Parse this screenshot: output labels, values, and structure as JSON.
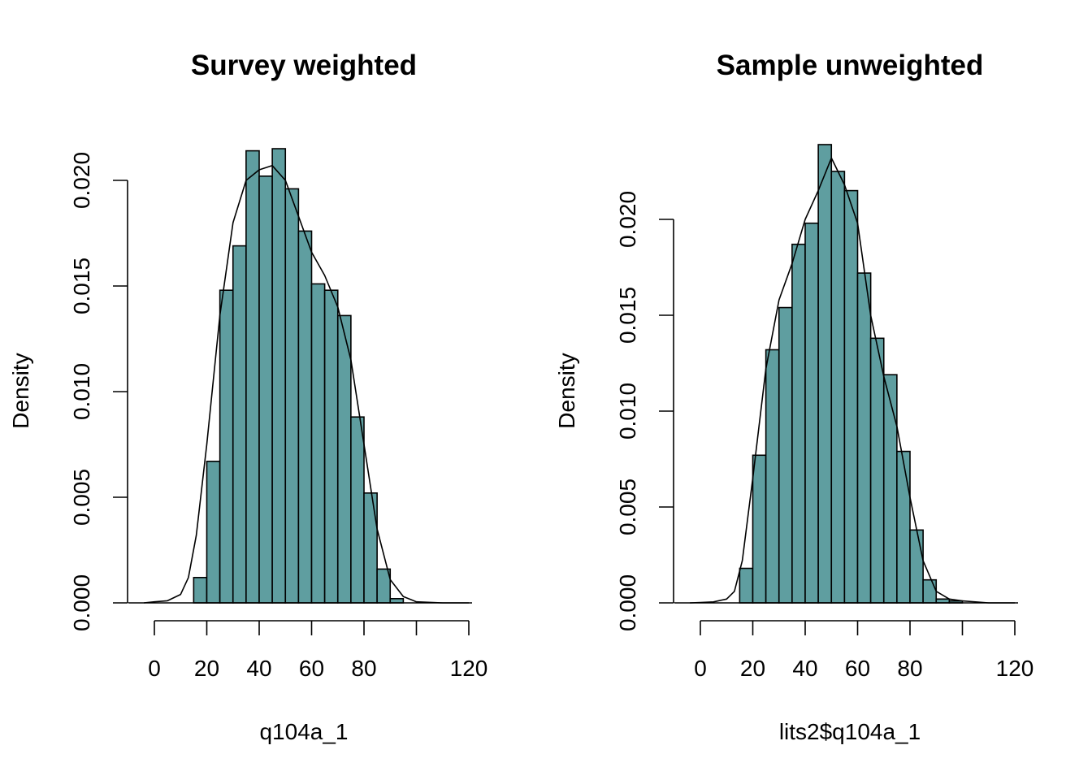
{
  "chart_data": [
    {
      "type": "bar",
      "title": "Survey weighted",
      "xlabel": "q104a_1",
      "ylabel": "Density",
      "xlim": [
        -5,
        120
      ],
      "ylim": [
        0,
        0.022
      ],
      "x_ticks": [
        0,
        20,
        40,
        60,
        80,
        100,
        120
      ],
      "x_tick_labels": [
        "0",
        "20",
        "40",
        "60",
        "80",
        "",
        "120"
      ],
      "y_ticks": [
        0,
        0.005,
        0.01,
        0.015,
        0.02
      ],
      "y_tick_labels": [
        "0.000",
        "0.005",
        "0.010",
        "0.015",
        "0.020"
      ],
      "bin_width": 5,
      "bins": [
        {
          "x0": 15,
          "density": 0.0012
        },
        {
          "x0": 20,
          "density": 0.0067
        },
        {
          "x0": 25,
          "density": 0.0148
        },
        {
          "x0": 30,
          "density": 0.0169
        },
        {
          "x0": 35,
          "density": 0.0214
        },
        {
          "x0": 40,
          "density": 0.0202
        },
        {
          "x0": 45,
          "density": 0.0215
        },
        {
          "x0": 50,
          "density": 0.0196
        },
        {
          "x0": 55,
          "density": 0.0176
        },
        {
          "x0": 60,
          "density": 0.0151
        },
        {
          "x0": 65,
          "density": 0.0148
        },
        {
          "x0": 70,
          "density": 0.0136
        },
        {
          "x0": 75,
          "density": 0.0088
        },
        {
          "x0": 80,
          "density": 0.0052
        },
        {
          "x0": 85,
          "density": 0.0016
        },
        {
          "x0": 90,
          "density": 0.0002
        }
      ],
      "density_curve": {
        "x": [
          -4,
          0,
          5,
          10,
          13,
          16,
          20,
          25,
          30,
          35,
          40,
          45,
          50,
          55,
          60,
          65,
          70,
          75,
          80,
          85,
          90,
          95,
          100,
          110,
          120
        ],
        "y": [
          0.0,
          5e-05,
          0.0001,
          0.0004,
          0.0012,
          0.0032,
          0.0075,
          0.0136,
          0.018,
          0.02,
          0.0205,
          0.0207,
          0.02,
          0.0183,
          0.0166,
          0.0155,
          0.014,
          0.0115,
          0.0075,
          0.0035,
          0.0011,
          0.0003,
          5e-05,
          0.0,
          0.0
        ]
      },
      "bar_color": "#5f9ea0"
    },
    {
      "type": "bar",
      "title": "Sample unweighted",
      "xlabel": "lits2$q104a_1",
      "ylabel": "Density",
      "xlim": [
        -5,
        120
      ],
      "ylim": [
        0,
        0.024
      ],
      "x_ticks": [
        0,
        20,
        40,
        60,
        80,
        100,
        120
      ],
      "x_tick_labels": [
        "0",
        "20",
        "40",
        "60",
        "80",
        "",
        "120"
      ],
      "y_ticks": [
        0,
        0.005,
        0.01,
        0.015,
        0.02
      ],
      "y_tick_labels": [
        "0.000",
        "0.005",
        "0.010",
        "0.015",
        "0.020"
      ],
      "bin_width": 5,
      "bins": [
        {
          "x0": 15,
          "density": 0.0018
        },
        {
          "x0": 20,
          "density": 0.0077
        },
        {
          "x0": 25,
          "density": 0.0132
        },
        {
          "x0": 30,
          "density": 0.0154
        },
        {
          "x0": 35,
          "density": 0.0187
        },
        {
          "x0": 40,
          "density": 0.0198
        },
        {
          "x0": 45,
          "density": 0.0239
        },
        {
          "x0": 50,
          "density": 0.0225
        },
        {
          "x0": 55,
          "density": 0.0215
        },
        {
          "x0": 60,
          "density": 0.0172
        },
        {
          "x0": 65,
          "density": 0.0138
        },
        {
          "x0": 70,
          "density": 0.0119
        },
        {
          "x0": 75,
          "density": 0.0079
        },
        {
          "x0": 80,
          "density": 0.0038
        },
        {
          "x0": 85,
          "density": 0.0012
        },
        {
          "x0": 90,
          "density": 0.0002
        },
        {
          "x0": 95,
          "density": 0.0001
        }
      ],
      "density_curve": {
        "x": [
          -4,
          0,
          5,
          10,
          13,
          16,
          20,
          25,
          30,
          35,
          40,
          45,
          50,
          55,
          60,
          65,
          70,
          75,
          80,
          85,
          90,
          95,
          100,
          110,
          120
        ],
        "y": [
          0.0,
          2e-05,
          5e-05,
          0.0002,
          0.0006,
          0.0022,
          0.0065,
          0.0122,
          0.0158,
          0.0177,
          0.02,
          0.0215,
          0.0232,
          0.0218,
          0.0198,
          0.015,
          0.0118,
          0.0092,
          0.0055,
          0.0022,
          0.0006,
          0.0002,
          0.0001,
          0.0,
          0.0
        ]
      },
      "bar_color": "#5f9ea0"
    }
  ]
}
